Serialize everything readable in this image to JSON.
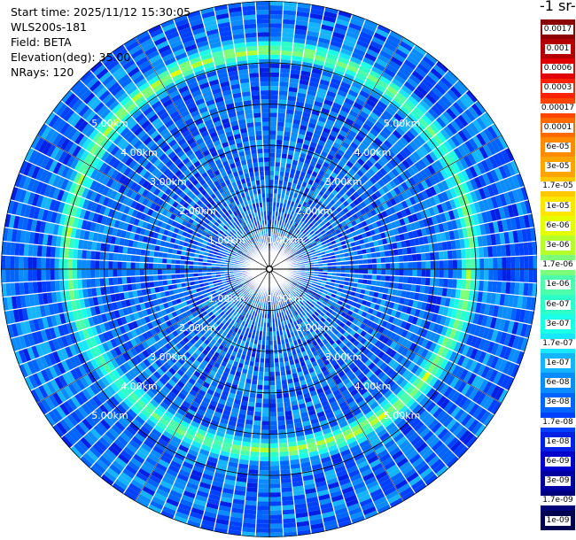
{
  "info": {
    "start_time": "Start time: 2025/11/12 15:30:05",
    "device": "WLS200s-181",
    "field": "Field: BETA",
    "elevation": "Elevation(deg): 35.00",
    "nrays": "NRays: 120"
  },
  "colorbar": {
    "title": "-1 sr-",
    "levels": [
      {
        "label": "0.0017",
        "color": "#8b0000"
      },
      {
        "label": "0.001",
        "color": "#b30000"
      },
      {
        "label": "0.0006",
        "color": "#e00000"
      },
      {
        "label": "0.0003",
        "color": "#ff2200"
      },
      {
        "label": "0.00017",
        "color": "#ff4400"
      },
      {
        "label": "0.0001",
        "color": "#ff6a00"
      },
      {
        "label": "6e-05",
        "color": "#ff8c00"
      },
      {
        "label": "3e-05",
        "color": "#ffa500"
      },
      {
        "label": "1.7e-05",
        "color": "#ffc800"
      },
      {
        "label": "1e-05",
        "color": "#ffe600"
      },
      {
        "label": "6e-06",
        "color": "#e6ff00"
      },
      {
        "label": "3e-06",
        "color": "#b4ff2e"
      },
      {
        "label": "1.7e-06",
        "color": "#7cff79"
      },
      {
        "label": "1e-06",
        "color": "#4dffaa"
      },
      {
        "label": "6e-07",
        "color": "#2effc8"
      },
      {
        "label": "3e-07",
        "color": "#1affe8"
      },
      {
        "label": "1.7e-07",
        "color": "#19e6ff"
      },
      {
        "label": "1e-07",
        "color": "#14b4ff"
      },
      {
        "label": "6e-08",
        "color": "#0a8cff"
      },
      {
        "label": "3e-08",
        "color": "#0064ff"
      },
      {
        "label": "1.7e-08",
        "color": "#0040ff"
      },
      {
        "label": "1e-08",
        "color": "#0020e6"
      },
      {
        "label": "6e-09",
        "color": "#0000cc"
      },
      {
        "label": "3e-09",
        "color": "#0000a0"
      },
      {
        "label": "1.7e-09",
        "color": "#000078"
      },
      {
        "label": "1e-09",
        "color": "#000050"
      }
    ]
  },
  "chart_data": {
    "type": "heatmap",
    "projection": "polar PPI",
    "field": "BETA",
    "elevation_deg": 35.0,
    "n_rays": 120,
    "range_rings_km": [
      1,
      2,
      3,
      4,
      5
    ],
    "range_labels": [
      "1.00km",
      "2.00km",
      "3.00km",
      "4.00km",
      "5.00km"
    ],
    "max_range_km": 6.5,
    "background_level": "3e-08",
    "aerosol_layer": {
      "range_km_north": 5.3,
      "range_km_south": 4.4,
      "peak_level": "3e-06",
      "width_km": 0.35
    }
  }
}
